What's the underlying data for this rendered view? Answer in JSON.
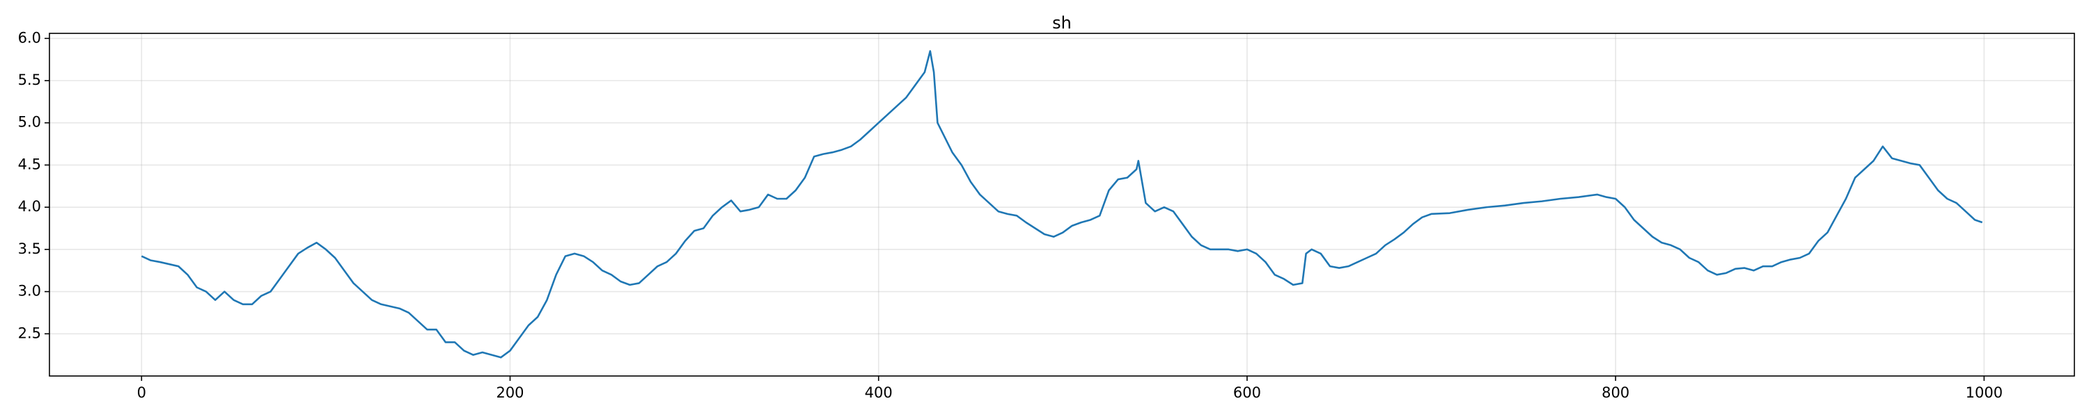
{
  "chart_data": {
    "type": "line",
    "title": "sh",
    "x": [
      0,
      5,
      10,
      20,
      25,
      30,
      35,
      40,
      45,
      50,
      55,
      60,
      65,
      70,
      75,
      80,
      85,
      90,
      95,
      100,
      105,
      110,
      115,
      120,
      125,
      130,
      140,
      145,
      150,
      155,
      160,
      165,
      170,
      175,
      180,
      185,
      190,
      195,
      200,
      205,
      210,
      215,
      220,
      225,
      230,
      235,
      240,
      245,
      250,
      255,
      260,
      265,
      270,
      275,
      280,
      285,
      290,
      295,
      300,
      305,
      310,
      315,
      320,
      325,
      330,
      335,
      340,
      345,
      350,
      355,
      360,
      365,
      370,
      375,
      380,
      385,
      390,
      395,
      400,
      405,
      410,
      415,
      420,
      425,
      428,
      430,
      432,
      440,
      445,
      450,
      455,
      460,
      465,
      470,
      475,
      480,
      485,
      490,
      495,
      500,
      505,
      510,
      515,
      520,
      525,
      530,
      535,
      540,
      541,
      545,
      550,
      555,
      560,
      565,
      570,
      575,
      580,
      590,
      595,
      600,
      605,
      610,
      615,
      620,
      625,
      630,
      632,
      635,
      640,
      645,
      650,
      655,
      660,
      665,
      670,
      675,
      680,
      685,
      690,
      695,
      700,
      710,
      720,
      730,
      740,
      750,
      760,
      770,
      780,
      790,
      795,
      800,
      805,
      810,
      815,
      820,
      825,
      830,
      835,
      840,
      845,
      850,
      855,
      860,
      865,
      870,
      875,
      880,
      885,
      890,
      895,
      900,
      905,
      910,
      915,
      920,
      925,
      930,
      935,
      940,
      945,
      950,
      955,
      960,
      965,
      970,
      975,
      980,
      985,
      990,
      995,
      999
    ],
    "values": [
      3.42,
      3.37,
      3.35,
      3.3,
      3.2,
      3.05,
      3.0,
      2.9,
      3.0,
      2.9,
      2.85,
      2.85,
      2.95,
      3.0,
      3.15,
      3.3,
      3.45,
      3.52,
      3.58,
      3.5,
      3.4,
      3.25,
      3.1,
      3.0,
      2.9,
      2.85,
      2.8,
      2.75,
      2.65,
      2.55,
      2.55,
      2.4,
      2.4,
      2.3,
      2.25,
      2.28,
      2.25,
      2.22,
      2.3,
      2.45,
      2.6,
      2.7,
      2.9,
      3.2,
      3.42,
      3.45,
      3.42,
      3.35,
      3.25,
      3.2,
      3.12,
      3.08,
      3.1,
      3.2,
      3.3,
      3.35,
      3.45,
      3.6,
      3.72,
      3.75,
      3.9,
      4.0,
      4.08,
      3.95,
      3.97,
      4.0,
      4.15,
      4.1,
      4.1,
      4.2,
      4.35,
      4.6,
      4.63,
      4.65,
      4.68,
      4.72,
      4.8,
      4.9,
      5.0,
      5.1,
      5.2,
      5.3,
      5.45,
      5.6,
      5.85,
      5.6,
      5.0,
      4.65,
      4.5,
      4.3,
      4.15,
      4.05,
      3.95,
      3.92,
      3.9,
      3.82,
      3.75,
      3.68,
      3.65,
      3.7,
      3.78,
      3.82,
      3.85,
      3.9,
      4.2,
      4.33,
      4.35,
      4.45,
      4.55,
      4.05,
      3.95,
      4.0,
      3.95,
      3.8,
      3.65,
      3.55,
      3.5,
      3.5,
      3.48,
      3.5,
      3.45,
      3.35,
      3.2,
      3.15,
      3.08,
      3.1,
      3.45,
      3.5,
      3.45,
      3.3,
      3.28,
      3.3,
      3.35,
      3.4,
      3.45,
      3.55,
      3.62,
      3.7,
      3.8,
      3.88,
      3.92,
      3.93,
      3.97,
      4.0,
      4.02,
      4.05,
      4.07,
      4.1,
      4.12,
      4.15,
      4.12,
      4.1,
      4.0,
      3.85,
      3.75,
      3.65,
      3.58,
      3.55,
      3.5,
      3.4,
      3.35,
      3.25,
      3.2,
      3.22,
      3.27,
      3.28,
      3.25,
      3.3,
      3.3,
      3.35,
      3.38,
      3.4,
      3.45,
      3.6,
      3.7,
      3.9,
      4.1,
      4.35,
      4.45,
      4.55,
      4.72,
      4.58,
      4.55,
      4.52,
      4.5,
      4.35,
      4.2,
      4.1,
      4.05,
      3.95,
      3.85,
      3.82
    ],
    "color": "#1f77b4",
    "xlim": [
      -50,
      1049
    ],
    "xticks": [
      0,
      200,
      400,
      600,
      800,
      1000
    ],
    "ylim": [
      2.0,
      6.06
    ],
    "yticks": [
      2.5,
      {
        "value": 3,
        "label": "3.0"
      },
      3.5,
      {
        "value": 4,
        "label": "4.0"
      },
      4.5,
      {
        "value": 5,
        "label": "5.0"
      },
      5.5,
      {
        "value": 6,
        "label": "6.0"
      }
    ],
    "grid": true
  }
}
